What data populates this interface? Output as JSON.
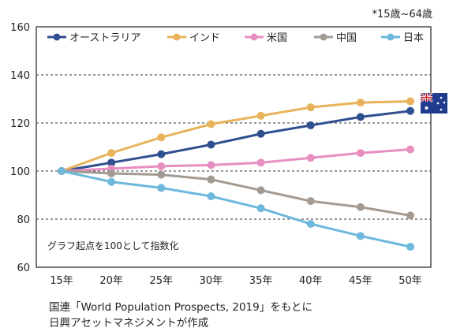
{
  "unit_note": "*15歳~64歳",
  "source": {
    "line1": "国連「World Population Prospects, 2019」をもとに",
    "line2": "日興アセットマネジメントが作成"
  },
  "chart_data": {
    "type": "line",
    "annotation": "グラフ起点を100として指数化",
    "categories": [
      "15年",
      "20年",
      "25年",
      "30年",
      "35年",
      "40年",
      "45年",
      "50年"
    ],
    "ylim": [
      60,
      160
    ],
    "yticks": [
      60,
      80,
      100,
      120,
      140,
      160
    ],
    "grid": "horizontal dashed",
    "legend_position": "top",
    "series": [
      {
        "name": "オーストラリア",
        "color": "#2f4f8f",
        "values": [
          100,
          103.5,
          107,
          111,
          115.5,
          119,
          122.5,
          125
        ]
      },
      {
        "name": "インド",
        "color": "#e8b35a",
        "values": [
          100,
          107.5,
          114,
          119.5,
          123,
          126.5,
          128.5,
          129
        ]
      },
      {
        "name": "米国",
        "color": "#e88fc2",
        "values": [
          100,
          101,
          102,
          102.5,
          103.5,
          105.5,
          107.5,
          109
        ]
      },
      {
        "name": "中国",
        "color": "#a39b93",
        "values": [
          100,
          99,
          98.5,
          96.5,
          92,
          87.5,
          85,
          81.5
        ]
      },
      {
        "name": "日本",
        "color": "#6db8dc",
        "values": [
          100,
          95.5,
          93,
          89.5,
          84.5,
          78,
          73,
          68.5
        ]
      }
    ],
    "flag_icon": "australia-flag-icon"
  }
}
